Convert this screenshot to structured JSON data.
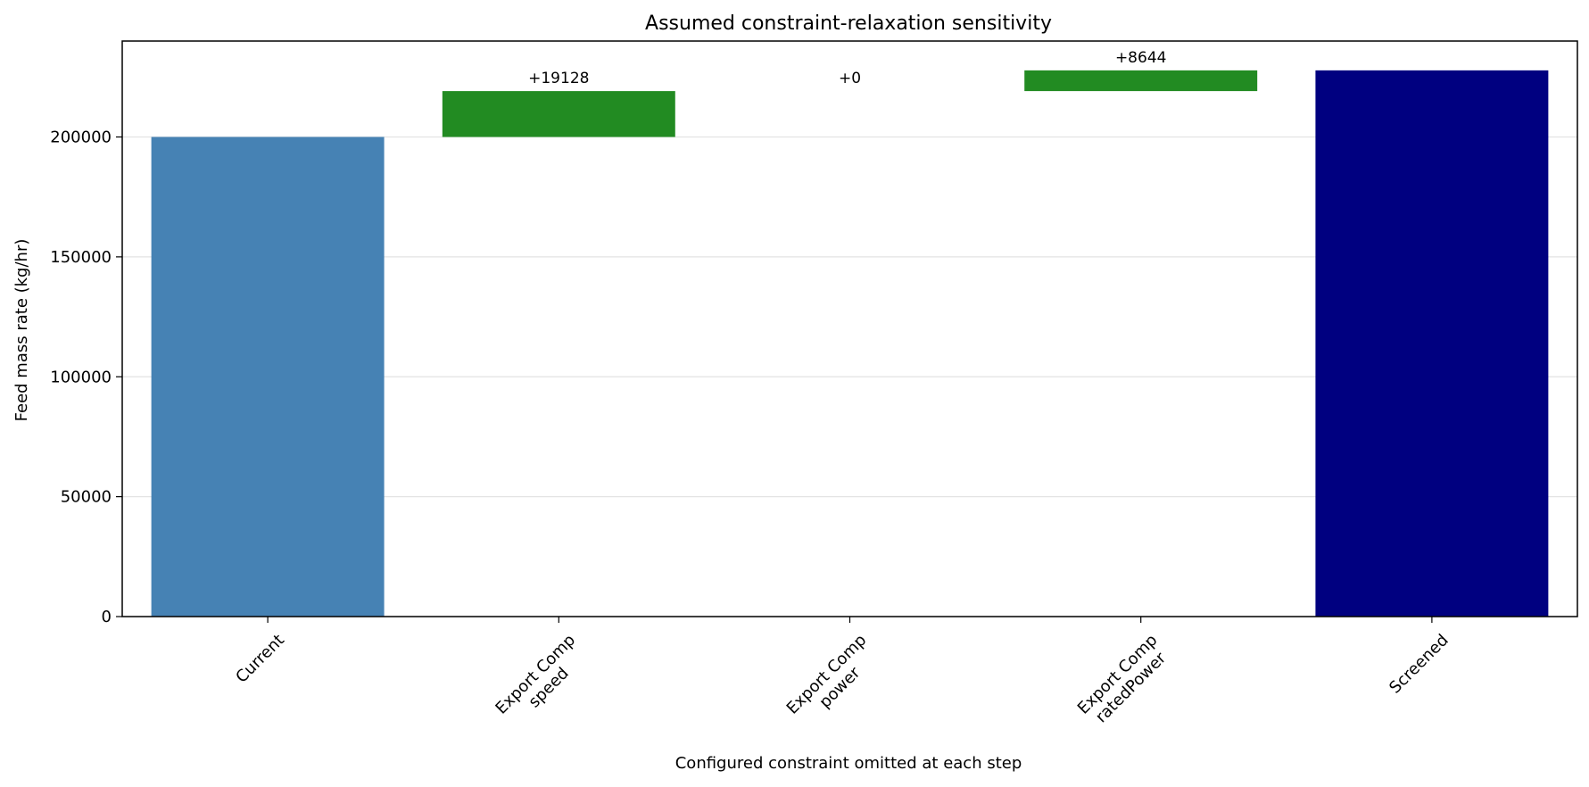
{
  "chart_data": {
    "type": "bar",
    "subtype": "waterfall",
    "title": "Assumed constraint-relaxation sensitivity",
    "xlabel": "Configured constraint omitted at each step",
    "ylabel": "Feed mass rate (kg/hr)",
    "ylim": [
      0,
      240000
    ],
    "yticks": [
      0,
      50000,
      100000,
      150000,
      200000
    ],
    "grid": "horizontal",
    "categories": [
      [
        "Current"
      ],
      [
        "Export Comp",
        "speed"
      ],
      [
        "Export Comp",
        "power"
      ],
      [
        "Export Comp",
        "ratedPower"
      ],
      [
        "Screened"
      ]
    ],
    "bars": [
      {
        "kind": "total",
        "base": 0,
        "value": 200000,
        "color": "#4682b4",
        "label": ""
      },
      {
        "kind": "delta",
        "base": 200000,
        "value": 19128,
        "color": "#228b22",
        "label": "+19128"
      },
      {
        "kind": "delta",
        "base": 219128,
        "value": 0,
        "color": "#228b22",
        "label": "+0"
      },
      {
        "kind": "delta",
        "base": 219128,
        "value": 8644,
        "color": "#228b22",
        "label": "+8644"
      },
      {
        "kind": "total",
        "base": 0,
        "value": 227772,
        "color": "#000080",
        "label": ""
      }
    ]
  }
}
